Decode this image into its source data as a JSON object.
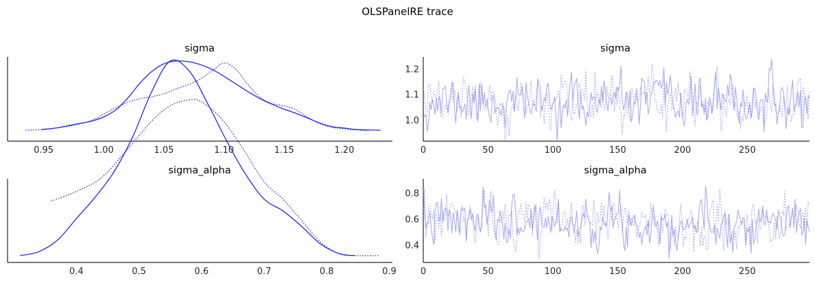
{
  "figure": {
    "title": "OLSPanelRE trace"
  },
  "chart_data": [
    {
      "type": "line",
      "variant": "kde",
      "title": "sigma",
      "xlim": [
        0.92,
        1.24
      ],
      "x_ticks": [
        "0.95",
        "1.00",
        "1.05",
        "1.10",
        "1.15",
        "1.20"
      ],
      "y_ticks_visible": false,
      "line_color": "#1f24ea",
      "series": [
        {
          "line_style": "solid",
          "x": [
            0.948,
            0.96,
            0.975,
            0.99,
            1.0,
            1.01,
            1.02,
            1.03,
            1.04,
            1.05,
            1.06,
            1.07,
            1.08,
            1.09,
            1.1,
            1.11,
            1.12,
            1.13,
            1.14,
            1.15,
            1.16,
            1.17,
            1.18,
            1.19,
            1.2,
            1.21,
            1.23
          ],
          "y": [
            0.02,
            0.04,
            0.09,
            0.14,
            0.2,
            0.3,
            0.47,
            0.68,
            0.85,
            0.96,
            1.0,
            0.99,
            0.95,
            0.88,
            0.78,
            0.67,
            0.56,
            0.46,
            0.38,
            0.31,
            0.25,
            0.18,
            0.11,
            0.06,
            0.04,
            0.02,
            0.01
          ]
        },
        {
          "line_style": "dotted",
          "x": [
            0.935,
            0.95,
            0.96,
            0.975,
            0.99,
            1.0,
            1.01,
            1.02,
            1.03,
            1.04,
            1.05,
            1.06,
            1.07,
            1.08,
            1.09,
            1.1,
            1.11,
            1.12,
            1.13,
            1.14,
            1.15,
            1.16,
            1.17,
            1.18,
            1.19,
            1.2,
            1.22
          ],
          "y": [
            0.01,
            0.02,
            0.04,
            0.08,
            0.15,
            0.24,
            0.33,
            0.41,
            0.46,
            0.49,
            0.53,
            0.6,
            0.66,
            0.74,
            0.86,
            0.97,
            0.88,
            0.66,
            0.48,
            0.39,
            0.36,
            0.3,
            0.19,
            0.1,
            0.05,
            0.03,
            0.0
          ]
        }
      ]
    },
    {
      "type": "line",
      "variant": "trace",
      "title": "sigma",
      "xlim": [
        0,
        298
      ],
      "ylim": [
        0.918,
        1.248
      ],
      "x_ticks": [
        "0",
        "50",
        "100",
        "150",
        "200",
        "250"
      ],
      "y_ticks": [
        "1.0",
        "1.1",
        "1.2"
      ],
      "line_color": "#6f74e8",
      "n_draws": 298,
      "chains": [
        {
          "line_style": "solid",
          "mean": 1.07,
          "sd": 0.048,
          "seed": 11
        },
        {
          "line_style": "dotted",
          "mean": 1.075,
          "sd": 0.05,
          "seed": 29
        }
      ]
    },
    {
      "type": "line",
      "variant": "kde",
      "title": "sigma_alpha",
      "xlim": [
        0.29,
        0.905
      ],
      "x_ticks": [
        "0.4",
        "0.5",
        "0.6",
        "0.7",
        "0.8",
        "0.9"
      ],
      "y_ticks_visible": false,
      "line_color": "#1f24ea",
      "series": [
        {
          "line_style": "solid",
          "x": [
            0.31,
            0.34,
            0.37,
            0.4,
            0.43,
            0.46,
            0.49,
            0.52,
            0.55,
            0.58,
            0.61,
            0.64,
            0.67,
            0.7,
            0.73,
            0.76,
            0.79,
            0.82,
            0.845
          ],
          "y": [
            0.0,
            0.02,
            0.08,
            0.19,
            0.3,
            0.43,
            0.61,
            0.84,
            1.0,
            0.95,
            0.78,
            0.59,
            0.42,
            0.29,
            0.23,
            0.15,
            0.06,
            0.01,
            0.0
          ]
        },
        {
          "line_style": "dotted",
          "x": [
            0.36,
            0.4,
            0.44,
            0.48,
            0.52,
            0.55,
            0.58,
            0.6,
            0.63,
            0.66,
            0.7,
            0.73,
            0.76,
            0.79,
            0.82,
            0.85,
            0.885
          ],
          "y": [
            0.28,
            0.33,
            0.4,
            0.54,
            0.69,
            0.77,
            0.8,
            0.79,
            0.71,
            0.58,
            0.38,
            0.29,
            0.18,
            0.07,
            0.01,
            0.0,
            0.0
          ]
        }
      ]
    },
    {
      "type": "line",
      "variant": "trace",
      "title": "sigma_alpha",
      "xlim": [
        0,
        298
      ],
      "ylim": [
        0.27,
        0.91
      ],
      "x_ticks": [
        "0",
        "50",
        "100",
        "150",
        "200",
        "250"
      ],
      "y_ticks": [
        "0.4",
        "0.6",
        "0.8"
      ],
      "line_color": "#6f74e8",
      "n_draws": 298,
      "chains": [
        {
          "line_style": "solid",
          "mean": 0.585,
          "sd": 0.095,
          "seed": 7
        },
        {
          "line_style": "dotted",
          "mean": 0.585,
          "sd": 0.1,
          "seed": 53
        }
      ]
    }
  ]
}
